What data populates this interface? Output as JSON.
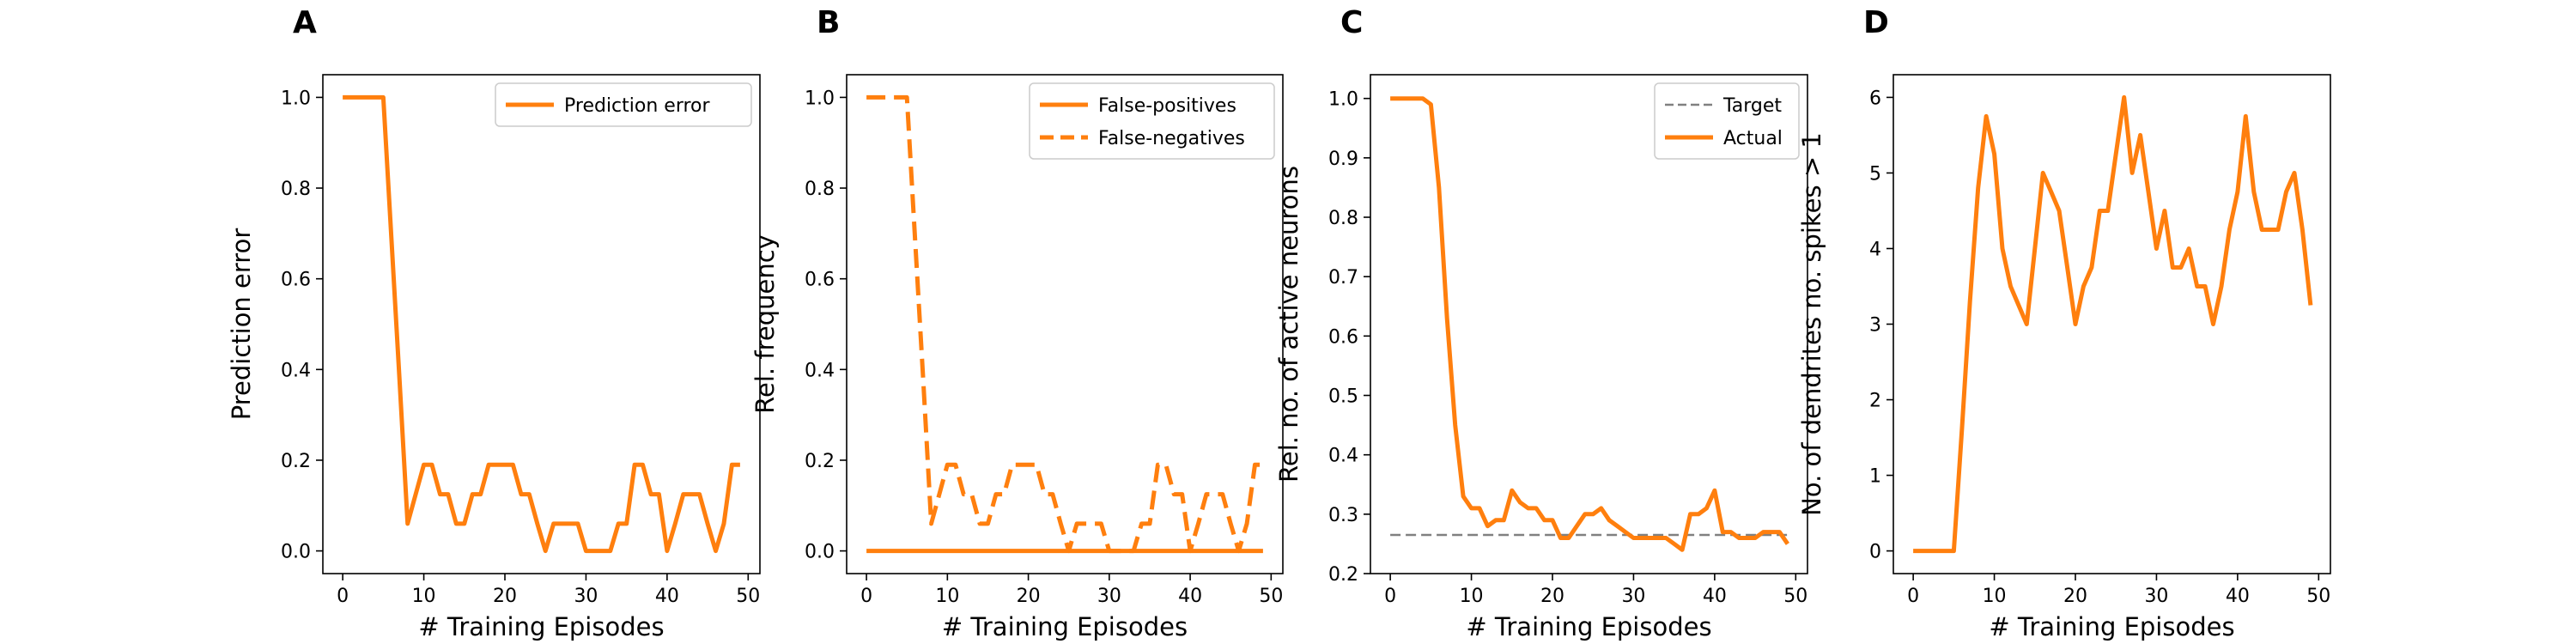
{
  "chart_data": [
    {
      "panel": "A",
      "type": "line",
      "xlabel": "# Training Episodes",
      "ylabel": "Prediction error",
      "xlim": [
        -2.45,
        51.45
      ],
      "ylim": [
        -0.05,
        1.05
      ],
      "xticks": [
        "0",
        "10",
        "20",
        "30",
        "40",
        "50"
      ],
      "yticks": [
        "0.0",
        "0.2",
        "0.4",
        "0.6",
        "0.8",
        "1.0"
      ],
      "legend_position": "top-right",
      "series": [
        {
          "name": "Prediction error",
          "style": "solid",
          "x": [
            0,
            1,
            2,
            3,
            4,
            5,
            6,
            7,
            8,
            9,
            10,
            11,
            12,
            13,
            14,
            15,
            16,
            17,
            18,
            19,
            20,
            21,
            22,
            23,
            24,
            25,
            26,
            27,
            28,
            29,
            30,
            31,
            32,
            33,
            34,
            35,
            36,
            37,
            38,
            39,
            40,
            41,
            42,
            43,
            44,
            45,
            46,
            47,
            48,
            49
          ],
          "y": [
            1.0,
            1.0,
            1.0,
            1.0,
            1.0,
            1.0,
            0.69,
            0.38,
            0.06,
            0.125,
            0.19,
            0.19,
            0.125,
            0.125,
            0.06,
            0.06,
            0.125,
            0.125,
            0.19,
            0.19,
            0.19,
            0.19,
            0.125,
            0.125,
            0.06,
            0.0,
            0.06,
            0.06,
            0.06,
            0.06,
            0.0,
            0.0,
            0.0,
            0.0,
            0.06,
            0.06,
            0.19,
            0.19,
            0.125,
            0.125,
            0.0,
            0.06,
            0.125,
            0.125,
            0.125,
            0.06,
            0.0,
            0.06,
            0.19,
            0.19
          ]
        }
      ]
    },
    {
      "panel": "B",
      "type": "line",
      "xlabel": "# Training Episodes",
      "ylabel": "Rel. frequency",
      "xlim": [
        -2.45,
        51.45
      ],
      "ylim": [
        -0.05,
        1.05
      ],
      "xticks": [
        "0",
        "10",
        "20",
        "30",
        "40",
        "50"
      ],
      "yticks": [
        "0.0",
        "0.2",
        "0.4",
        "0.6",
        "0.8",
        "1.0"
      ],
      "legend_position": "top-right",
      "series": [
        {
          "name": "False-positives",
          "style": "solid",
          "x": [
            0,
            49
          ],
          "y": [
            0.0,
            0.0
          ]
        },
        {
          "name": "False-negatives",
          "style": "dashed",
          "x": [
            0,
            1,
            2,
            3,
            4,
            5,
            6,
            7,
            8,
            9,
            10,
            11,
            12,
            13,
            14,
            15,
            16,
            17,
            18,
            19,
            20,
            21,
            22,
            23,
            24,
            25,
            26,
            27,
            28,
            29,
            30,
            31,
            32,
            33,
            34,
            35,
            36,
            37,
            38,
            39,
            40,
            41,
            42,
            43,
            44,
            45,
            46,
            47,
            48,
            49
          ],
          "y": [
            1.0,
            1.0,
            1.0,
            1.0,
            1.0,
            1.0,
            0.69,
            0.38,
            0.06,
            0.125,
            0.19,
            0.19,
            0.125,
            0.125,
            0.06,
            0.06,
            0.125,
            0.125,
            0.19,
            0.19,
            0.19,
            0.19,
            0.125,
            0.125,
            0.06,
            0.0,
            0.06,
            0.06,
            0.06,
            0.06,
            0.0,
            0.0,
            0.0,
            0.0,
            0.06,
            0.06,
            0.19,
            0.19,
            0.125,
            0.125,
            0.0,
            0.06,
            0.125,
            0.125,
            0.125,
            0.06,
            0.0,
            0.06,
            0.19,
            0.19
          ]
        }
      ]
    },
    {
      "panel": "C",
      "type": "line",
      "xlabel": "# Training Episodes",
      "ylabel": "Rel. no. of active neurons",
      "xlim": [
        -2.45,
        51.45
      ],
      "ylim": [
        0.2,
        1.04
      ],
      "xticks": [
        "0",
        "10",
        "20",
        "30",
        "40",
        "50"
      ],
      "yticks": [
        "0.2",
        "0.3",
        "0.4",
        "0.5",
        "0.6",
        "0.7",
        "0.8",
        "0.9",
        "1.0"
      ],
      "legend_position": "top-right",
      "series": [
        {
          "name": "Target",
          "style": "dashed",
          "x": [
            0,
            49
          ],
          "y": [
            0.265,
            0.265
          ]
        },
        {
          "name": "Actual",
          "style": "solid",
          "x": [
            0,
            1,
            2,
            3,
            4,
            5,
            6,
            7,
            8,
            9,
            10,
            11,
            12,
            13,
            14,
            15,
            16,
            17,
            18,
            19,
            20,
            21,
            22,
            23,
            24,
            25,
            26,
            27,
            28,
            29,
            30,
            31,
            32,
            33,
            34,
            35,
            36,
            37,
            38,
            39,
            40,
            41,
            42,
            43,
            44,
            45,
            46,
            47,
            48,
            49
          ],
          "y": [
            1.0,
            1.0,
            1.0,
            1.0,
            1.0,
            0.99,
            0.85,
            0.63,
            0.45,
            0.33,
            0.31,
            0.31,
            0.28,
            0.29,
            0.29,
            0.34,
            0.32,
            0.31,
            0.31,
            0.29,
            0.29,
            0.26,
            0.26,
            0.28,
            0.3,
            0.3,
            0.31,
            0.29,
            0.28,
            0.27,
            0.26,
            0.26,
            0.26,
            0.26,
            0.26,
            0.25,
            0.24,
            0.3,
            0.3,
            0.31,
            0.34,
            0.27,
            0.27,
            0.26,
            0.26,
            0.26,
            0.27,
            0.27,
            0.27,
            0.25
          ]
        }
      ]
    },
    {
      "panel": "D",
      "type": "line",
      "xlabel": "# Training Episodes",
      "ylabel": "No. of dendrites no. spikes > 1",
      "xlim": [
        -2.45,
        51.45
      ],
      "ylim": [
        -0.3,
        6.3
      ],
      "xticks": [
        "0",
        "10",
        "20",
        "30",
        "40",
        "50"
      ],
      "yticks": [
        "0",
        "1",
        "2",
        "3",
        "4",
        "5",
        "6"
      ],
      "legend_position": "",
      "series": [
        {
          "style": "solid",
          "x": [
            0,
            1,
            2,
            3,
            4,
            5,
            6,
            7,
            8,
            9,
            10,
            11,
            12,
            13,
            14,
            15,
            16,
            17,
            18,
            19,
            20,
            21,
            22,
            23,
            24,
            25,
            26,
            27,
            28,
            29,
            30,
            31,
            32,
            33,
            34,
            35,
            36,
            37,
            38,
            39,
            40,
            41,
            42,
            43,
            44,
            45,
            46,
            47,
            48,
            49
          ],
          "y": [
            0,
            0,
            0,
            0,
            0,
            0,
            1.6,
            3.3,
            4.8,
            5.75,
            5.25,
            4.0,
            3.5,
            3.25,
            3.0,
            4.0,
            5.0,
            4.75,
            4.5,
            3.75,
            3.0,
            3.5,
            3.75,
            4.5,
            4.5,
            5.25,
            6.0,
            5.0,
            5.5,
            4.75,
            4.0,
            4.5,
            3.75,
            3.75,
            4.0,
            3.5,
            3.5,
            3.0,
            3.5,
            4.25,
            4.75,
            5.75,
            4.75,
            4.25,
            4.25,
            4.25,
            4.75,
            5.0,
            4.25,
            3.25
          ]
        }
      ]
    }
  ],
  "panel_letters": [
    "A",
    "B",
    "C",
    "D"
  ],
  "colors": {
    "line": "#ff7f0e",
    "target": "#808080",
    "axis": "#000000",
    "legend_border": "#cccccc"
  }
}
